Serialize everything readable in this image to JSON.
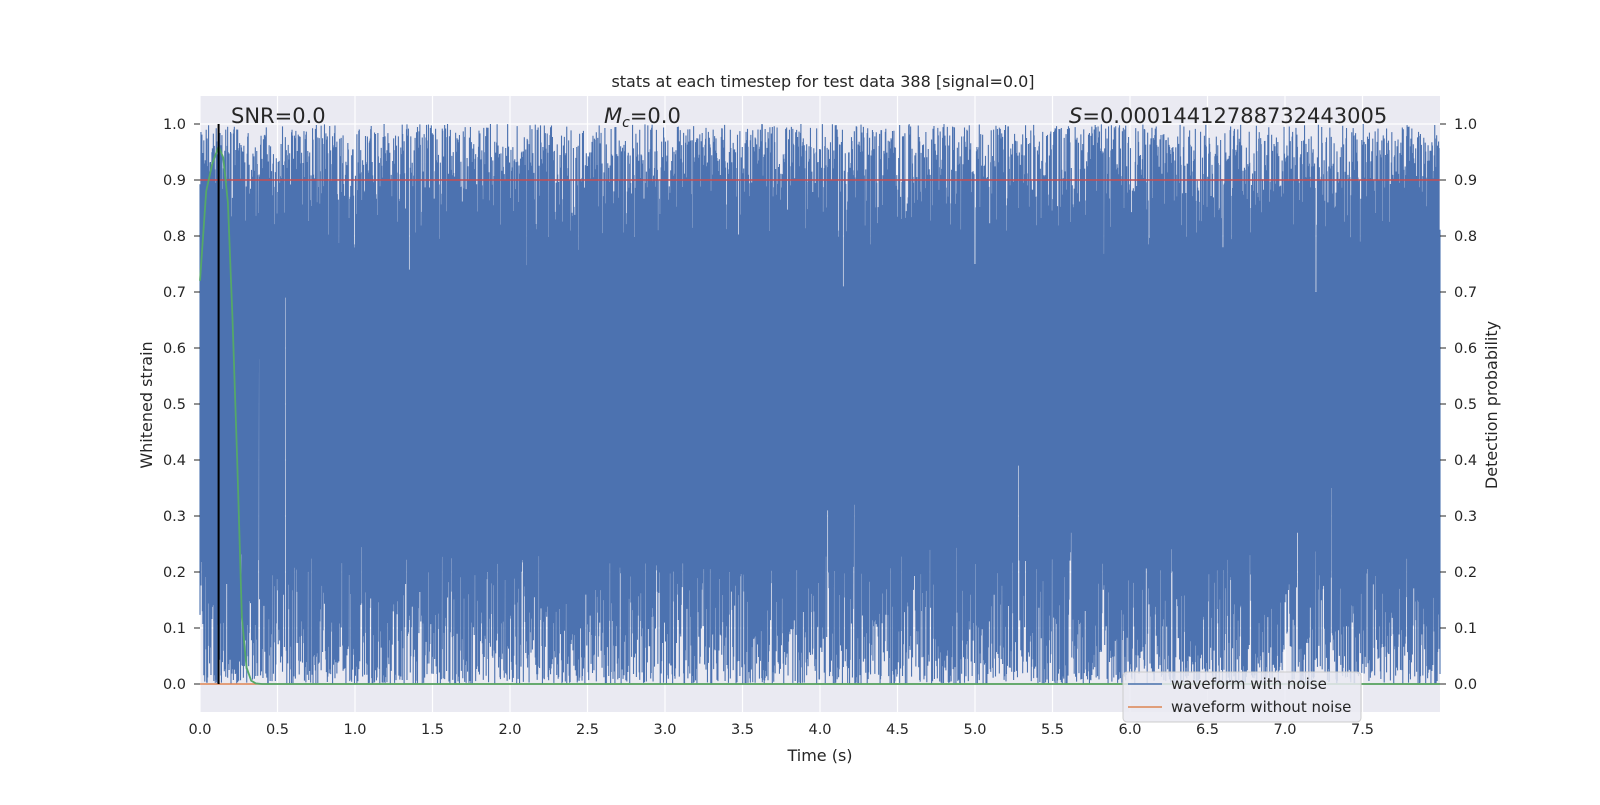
{
  "chart_data": {
    "type": "line",
    "title": "stats at each timestep for test data 388 [signal=0.0]",
    "xlabel": "Time (s)",
    "ylabel_left": "Whitened strain",
    "ylabel_right": "Detection probability",
    "xlim": [
      0.0,
      8.0
    ],
    "ylim": [
      -0.05,
      1.05
    ],
    "x_ticks": [
      "0.0",
      "0.5",
      "1.0",
      "1.5",
      "2.0",
      "2.5",
      "3.0",
      "3.5",
      "4.0",
      "4.5",
      "5.0",
      "5.5",
      "6.0",
      "6.5",
      "7.0",
      "7.5"
    ],
    "y_ticks": [
      "0.0",
      "0.1",
      "0.2",
      "0.3",
      "0.4",
      "0.5",
      "0.6",
      "0.7",
      "0.8",
      "0.9",
      "1.0"
    ],
    "y_ticks_right": [
      "0.0",
      "0.1",
      "0.2",
      "0.3",
      "0.4",
      "0.5",
      "0.6",
      "0.7",
      "0.8",
      "0.9",
      "1.0"
    ],
    "grid": true,
    "legend_position": "lower-right",
    "annotations": {
      "snr": "SNR=0.0",
      "mc_symbol": "M",
      "mc_sub": "c",
      "mc_value": "=0.0",
      "s_symbol": "S",
      "s_value": "=0.00014412788732443005"
    },
    "series": [
      {
        "name": "waveform with noise",
        "color": "#4c72b0",
        "description_values": "dense noise trace spanning roughly 0.0 to 1.0 on the strain axis",
        "sampled_noise": {
          "x_start": 0.0,
          "x_end": 8.0,
          "band_low_range": [
            0.0,
            0.25
          ],
          "band_high_range": [
            0.72,
            1.0
          ],
          "spikes_low": [
            {
              "x": 0.38,
              "y": 0.58
            },
            {
              "x": 0.55,
              "y": 0.69
            },
            {
              "x": 5.28,
              "y": 0.39
            },
            {
              "x": 7.3,
              "y": 0.35
            },
            {
              "x": 4.22,
              "y": 0.32
            },
            {
              "x": 4.05,
              "y": 0.31
            },
            {
              "x": 5.62,
              "y": 0.27
            },
            {
              "x": 7.08,
              "y": 0.27
            }
          ],
          "spikes_high": [
            {
              "x": 1.35,
              "y": 0.74
            },
            {
              "x": 4.15,
              "y": 0.71
            },
            {
              "x": 7.2,
              "y": 0.7
            },
            {
              "x": 6.6,
              "y": 0.78
            },
            {
              "x": 5.0,
              "y": 0.75
            }
          ]
        }
      },
      {
        "name": "waveform without noise",
        "color": "#dd8452",
        "x": [
          0.0,
          8.0
        ],
        "y": [
          0.0,
          0.0
        ]
      },
      {
        "name": "detection probability",
        "color": "#55a868",
        "x": [
          0.0,
          0.04,
          0.08,
          0.12,
          0.15,
          0.18,
          0.21,
          0.24,
          0.27,
          0.3,
          0.33,
          0.36,
          0.4,
          8.0
        ],
        "y": [
          0.72,
          0.88,
          0.93,
          0.96,
          0.94,
          0.86,
          0.65,
          0.4,
          0.12,
          0.03,
          0.006,
          0.001,
          0.0,
          0.0
        ]
      }
    ],
    "threshold_line": {
      "y": 0.9,
      "color": "#c44e52"
    },
    "vertical_marker": {
      "x": 0.12,
      "y_range": [
        0.0,
        1.0
      ],
      "color": "#000000"
    }
  }
}
